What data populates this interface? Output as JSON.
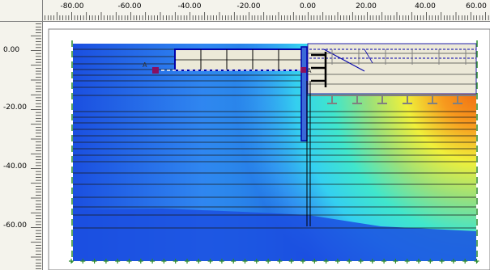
{
  "window": {
    "title": ""
  },
  "ruler_x": {
    "labels": [
      "-80.00",
      "-60.00",
      "-40.00",
      "-20.00",
      "0.00",
      "20.00",
      "40.00",
      "60.00"
    ]
  },
  "ruler_y": {
    "labels": [
      "0.00",
      "-20.00",
      "-40.00",
      "-60.00"
    ]
  },
  "markers": {
    "left_point": "A",
    "right_point": "A"
  },
  "colors": {
    "deep_blue": "#1b4fe0",
    "blue": "#2f86f0",
    "cyan": "#34d0f0",
    "aqua": "#40e6cc",
    "green": "#9ae07a",
    "yellow": "#f0f03a",
    "orange": "#f79a1e",
    "dark_orange": "#ef6a12",
    "structure": "#0000aa"
  }
}
